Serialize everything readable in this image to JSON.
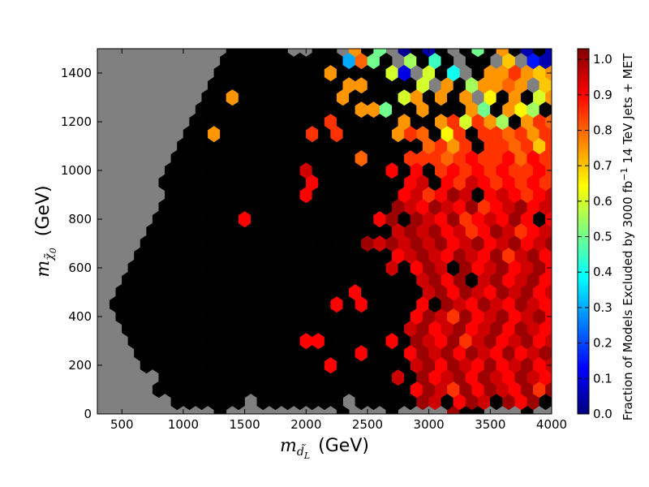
{
  "chart_data": {
    "type": "hexbin",
    "xlabel": {
      "symbol": "m",
      "sub": "d̃",
      "subsub": "L",
      "unit": "(GeV)"
    },
    "ylabel": {
      "symbol": "m",
      "sub": "χ̃",
      "subsub": "0",
      "unit": "(GeV)"
    },
    "colorbar_label": {
      "text": "Fraction of Models Excluded by 3000 fb",
      "superscript": "−1",
      "text_after": "14 TeV Jets + MET"
    },
    "colormap": "jet",
    "zero_color": "#000000",
    "empty_color": "#808080",
    "xlim": [
      300,
      4000
    ],
    "ylim": [
      0,
      1500
    ],
    "xticks": [
      500,
      1000,
      1500,
      2000,
      2500,
      3000,
      3500,
      4000
    ],
    "yticks": [
      0,
      200,
      400,
      600,
      800,
      1000,
      1200,
      1400
    ],
    "clim": [
      0,
      1.03
    ],
    "cticks": [
      {
        "value": 0,
        "label": "0.0"
      },
      0.1,
      0.2,
      0.3,
      0.4,
      0.5,
      0.6,
      0.7,
      0.8,
      0.9,
      {
        "value": 1,
        "label": "1.0"
      }
    ],
    "x": [
      300,
      400,
      500,
      600,
      700,
      800,
      900,
      1000,
      1100,
      1200,
      1300,
      1400,
      1500,
      1600,
      1700,
      1800,
      1900,
      2000,
      2100,
      2200,
      2300,
      2400,
      2500,
      2600,
      2700,
      2800,
      2900,
      3000,
      3100,
      3200,
      3300,
      3400,
      3500,
      3600,
      3700,
      3800,
      3900,
      4000
    ],
    "x_odd": [
      350,
      450,
      550,
      650,
      750,
      850,
      950,
      1050,
      1150,
      1250,
      1350,
      1450,
      1550,
      1650,
      1750,
      1850,
      1950,
      2050,
      2150,
      2250,
      2350,
      2450,
      2550,
      2650,
      2750,
      2850,
      2950,
      3050,
      3150,
      3250,
      3350,
      3450,
      3550,
      3650,
      3750,
      3850,
      3950
    ],
    "y": [
      0,
      50,
      100,
      150,
      200,
      250,
      300,
      350,
      400,
      450,
      500,
      550,
      600,
      650,
      700,
      750,
      800,
      850,
      900,
      950,
      1000,
      1050,
      1100,
      1150,
      1200,
      1250,
      1300,
      1350,
      1400,
      1450,
      1500
    ],
    "values": [
      [
        null,
        null,
        null,
        null,
        null,
        null,
        null,
        null,
        null,
        null,
        0,
        null,
        null,
        null,
        null,
        null,
        null,
        null,
        null,
        null,
        0,
        null,
        null,
        null,
        0,
        null,
        null,
        null,
        null,
        1,
        0,
        0,
        null,
        null,
        null,
        0,
        null,
        null
      ],
      [
        null,
        null,
        null,
        null,
        null,
        null,
        0,
        0,
        0,
        0,
        0,
        0,
        null,
        0,
        0,
        0,
        0,
        0,
        0,
        0,
        null,
        0,
        0,
        0,
        0,
        0,
        1,
        0.95,
        0,
        0.9,
        1,
        0.95,
        0,
        1,
        0.9,
        1,
        0
      ],
      [
        null,
        null,
        null,
        null,
        null,
        0,
        0,
        0,
        0,
        0,
        0,
        0,
        0,
        0,
        0,
        0,
        0,
        0,
        0,
        0,
        0,
        0,
        0,
        0,
        0,
        0,
        0.9,
        1,
        0.95,
        0.85,
        1,
        0.9,
        1,
        0.95,
        0.9,
        1,
        0.85,
        1
      ],
      [
        null,
        null,
        null,
        null,
        null,
        0,
        0,
        0,
        0,
        0,
        0,
        0,
        0,
        0,
        0,
        0,
        0,
        0,
        0,
        0,
        0,
        0,
        0,
        0,
        0.95,
        0,
        1,
        0.9,
        0.95,
        1,
        0.9,
        1,
        0.95,
        0.9,
        1,
        0.95,
        0.9
      ],
      [
        null,
        null,
        null,
        null,
        0,
        0,
        0,
        0,
        0,
        0,
        0,
        0,
        0,
        0,
        0,
        0,
        0,
        0,
        0,
        0.9,
        0,
        0,
        0,
        0,
        0,
        0,
        0.95,
        1,
        0.9,
        1,
        0.95,
        0.9,
        1,
        0.9,
        0.95,
        1,
        0.9,
        0.95
      ],
      [
        null,
        null,
        null,
        0,
        0,
        0,
        0,
        0,
        0,
        0,
        0,
        0,
        0,
        0,
        0,
        0,
        0,
        0,
        0,
        0,
        0,
        0.9,
        0,
        0,
        0,
        0.9,
        1,
        0.95,
        1,
        0.9,
        1,
        0.95,
        0.9,
        1,
        0.9,
        0.95,
        1
      ],
      [
        null,
        null,
        null,
        0,
        0,
        0,
        0,
        0,
        0,
        0,
        0,
        0,
        0,
        0,
        0,
        0,
        0,
        0.9,
        0.9,
        0,
        0,
        0,
        0,
        0,
        0.9,
        0,
        1,
        0.95,
        0.9,
        1,
        0.85,
        0.95,
        1,
        0.9,
        0.95,
        1,
        0.9,
        0.95
      ],
      [
        null,
        null,
        0,
        0,
        0,
        0,
        0,
        0,
        0,
        0,
        0,
        0,
        0,
        0,
        0,
        0,
        0,
        0,
        0,
        0,
        0,
        0,
        0,
        0,
        0,
        0.95,
        1,
        0.9,
        0.95,
        1,
        0.9,
        0.95,
        1,
        0.9,
        1,
        0.95,
        0.9
      ],
      [
        null,
        null,
        0,
        0,
        0,
        0,
        0,
        0,
        0,
        0,
        0,
        0,
        0,
        0,
        0,
        0,
        0,
        0,
        0,
        0,
        0,
        0,
        0,
        0,
        0,
        0,
        0.9,
        1,
        0.95,
        0.85,
        1,
        0.9,
        0.95,
        1,
        0.9,
        0.95,
        1,
        0.9
      ],
      [
        null,
        0,
        0,
        0,
        0,
        0,
        0,
        0,
        0,
        0,
        0,
        0,
        0,
        0,
        0,
        0,
        0,
        0,
        0,
        0.9,
        0,
        0.9,
        0,
        0,
        0,
        0,
        0.9,
        0,
        1,
        0.95,
        0.9,
        1,
        0.95,
        0.9,
        1,
        0.95,
        0.9
      ],
      [
        null,
        null,
        0,
        0,
        0,
        0,
        0,
        0,
        0,
        0,
        0,
        0,
        0,
        0,
        0,
        0,
        0,
        0,
        0,
        0,
        0,
        0.9,
        0,
        0,
        0,
        0,
        0,
        0.95,
        1,
        0.9,
        1,
        0.95,
        0.9,
        1,
        0.95,
        1,
        0.9,
        0.95
      ],
      [
        null,
        null,
        0,
        0,
        0,
        0,
        0,
        0,
        0,
        0,
        0,
        0,
        0,
        0,
        0,
        0,
        0,
        0,
        0,
        0,
        0,
        0,
        0,
        0,
        0,
        0,
        0.95,
        1,
        0.9,
        1,
        0,
        0.95,
        1,
        0.9,
        0.95,
        1,
        0.9
      ],
      [
        null,
        null,
        null,
        0,
        0,
        0,
        0,
        0,
        0,
        0,
        0,
        0,
        0,
        0,
        0,
        0,
        0,
        0,
        0,
        0,
        0,
        0,
        0,
        0,
        0.95,
        0,
        0.9,
        1,
        0.95,
        0,
        1,
        0.9,
        0.95,
        1,
        0.9,
        0.95,
        1,
        0.9
      ],
      [
        null,
        null,
        null,
        0,
        0,
        0,
        0,
        0,
        0,
        0,
        0,
        0,
        0,
        0,
        0,
        0,
        0,
        0,
        0,
        0,
        0,
        0,
        0,
        0,
        0.9,
        0.95,
        1,
        0.95,
        0.9,
        1,
        0.95,
        0.9,
        1,
        0.85,
        0.95,
        1,
        0.9
      ],
      [
        null,
        null,
        null,
        null,
        0,
        0,
        0,
        0,
        0,
        0,
        0,
        0,
        0,
        0,
        0,
        0,
        0,
        0,
        0,
        0,
        0,
        0,
        1,
        0.95,
        1,
        0.95,
        1,
        0.95,
        1,
        0.9,
        0.95,
        1,
        0.9,
        0.95,
        1,
        0.9,
        0.95,
        1
      ],
      [
        null,
        null,
        null,
        null,
        0,
        0,
        0,
        0,
        0,
        0,
        0,
        0,
        0,
        0,
        0,
        0,
        0,
        0,
        0,
        0,
        0,
        0,
        0,
        0,
        0.95,
        1,
        0.95,
        1,
        0.9,
        0.95,
        0.85,
        0.9,
        1,
        0.95,
        0.85,
        0.9,
        0.95
      ],
      [
        null,
        null,
        null,
        null,
        null,
        0,
        0,
        0,
        0,
        0,
        0,
        0,
        0.9,
        0,
        0,
        0,
        0,
        0,
        0,
        0,
        0,
        0,
        0,
        0.9,
        1,
        0,
        1,
        0.95,
        0.9,
        1,
        0.85,
        0.9,
        0.95,
        0.9,
        1,
        0.9,
        0,
        0.9
      ],
      [
        null,
        null,
        null,
        null,
        null,
        0,
        0,
        0,
        0,
        0,
        0,
        0,
        0,
        0,
        0,
        0,
        0,
        0,
        0,
        0,
        0,
        0,
        0,
        0,
        1,
        0.95,
        0.9,
        1,
        0.95,
        0.9,
        1,
        0.85,
        0.9,
        0.95,
        1,
        0.9,
        0.95
      ],
      [
        null,
        null,
        null,
        null,
        null,
        null,
        0,
        0,
        0,
        0,
        0,
        0,
        0,
        0,
        0,
        0,
        0,
        0.9,
        0,
        0,
        0,
        0,
        0,
        0,
        0,
        0.9,
        0.95,
        0.85,
        0.9,
        1,
        0.95,
        0,
        0.9,
        0.95,
        0.9,
        0.85,
        0.9,
        0.95
      ],
      [
        null,
        null,
        null,
        null,
        null,
        0,
        0,
        0,
        0,
        0,
        0,
        0,
        0,
        0,
        0,
        0,
        0,
        0.9,
        0,
        0,
        0,
        0,
        0,
        0,
        0,
        0.9,
        0.95,
        0,
        0.9,
        0.85,
        0.95,
        0.9,
        0.85,
        0.9,
        0.85,
        0.9,
        0.85
      ],
      [
        null,
        null,
        null,
        null,
        null,
        null,
        0,
        0,
        0,
        0,
        0,
        0,
        0,
        0,
        0,
        0,
        0,
        0.95,
        0,
        0,
        0,
        0,
        0,
        0,
        0.9,
        0,
        0.9,
        0,
        0.85,
        0.9,
        0.85,
        0.9,
        0.85,
        0.9,
        0.85,
        0.85,
        0.9,
        0.85
      ],
      [
        null,
        null,
        null,
        null,
        null,
        null,
        0,
        0,
        0,
        0,
        0,
        0,
        0,
        0,
        0,
        0,
        0,
        0,
        0,
        0,
        0,
        0.8,
        0,
        0,
        0,
        0.85,
        0.85,
        0.85,
        0.8,
        0.85,
        0.9,
        0.85,
        0.85,
        0.9,
        0.8,
        0.9,
        0.85
      ],
      [
        null,
        null,
        null,
        null,
        null,
        null,
        null,
        0,
        0,
        0,
        0,
        0,
        0,
        0,
        0,
        0,
        0,
        0,
        0,
        0,
        0,
        0,
        0,
        0,
        0,
        0,
        0,
        0.8,
        0.85,
        0.75,
        0.85,
        0,
        0.85,
        0.85,
        0.8,
        0.85,
        0.7,
        0.85
      ],
      [
        null,
        null,
        null,
        null,
        null,
        null,
        null,
        0,
        0,
        0.75,
        0,
        0,
        0,
        0,
        0,
        0,
        0,
        0.85,
        0,
        0.85,
        0,
        0,
        0,
        0,
        0.75,
        0.85,
        0.8,
        0,
        0.65,
        0.85,
        0,
        0.85,
        0.85,
        0.8,
        0.85,
        0.75,
        0.85
      ],
      [
        null,
        null,
        null,
        null,
        null,
        null,
        null,
        null,
        0,
        0,
        0,
        0,
        0,
        0,
        0,
        0,
        0,
        0,
        0,
        0.85,
        0,
        0,
        0,
        0,
        0,
        0.75,
        0,
        0,
        0.75,
        0.85,
        0.6,
        0.85,
        0.75,
        0.55,
        0,
        0.75,
        0.85,
        0.8
      ],
      [
        null,
        null,
        null,
        null,
        null,
        null,
        null,
        null,
        0,
        0,
        0,
        0,
        0,
        0,
        0,
        0,
        0,
        0,
        0,
        0,
        0,
        0.75,
        0.75,
        0.5,
        0,
        0,
        0.75,
        0,
        0,
        0,
        0.75,
        0.5,
        0,
        0.75,
        0.65,
        0.55,
        0
      ],
      [
        null,
        null,
        null,
        null,
        null,
        null,
        null,
        null,
        null,
        0,
        0,
        0.75,
        0,
        0,
        0,
        0,
        0,
        0,
        0,
        0,
        0.75,
        0,
        0,
        0,
        0,
        0.6,
        0.75,
        0,
        0.75,
        0,
        0.75,
        null,
        0.65,
        0,
        0.75,
        0,
        0.6,
        0.75
      ],
      [
        null,
        null,
        null,
        null,
        null,
        null,
        null,
        null,
        null,
        0,
        0,
        0,
        0,
        0,
        0,
        0,
        0,
        0,
        0,
        0,
        0.75,
        0.75,
        0,
        0,
        0,
        0,
        0.6,
        null,
        0.75,
        0,
        0.55,
        0.75,
        0.75,
        0.8,
        0.75,
        null,
        0.7
      ],
      [
        null,
        null,
        null,
        null,
        null,
        null,
        null,
        null,
        null,
        null,
        0,
        0,
        0,
        0,
        0,
        0,
        0,
        0,
        0,
        0.75,
        0,
        0,
        0,
        0,
        0.6,
        0.1,
        null,
        0.6,
        0,
        0.4,
        null,
        0,
        0.75,
        0.75,
        0.85,
        0.75,
        0.7,
        0.75
      ],
      [
        null,
        null,
        null,
        null,
        null,
        null,
        null,
        null,
        null,
        null,
        0,
        0,
        0,
        0,
        0,
        0,
        0,
        0,
        0,
        0,
        0.3,
        0.8,
        0.5,
        0,
        null,
        0.55,
        0,
        0.45,
        0,
        null,
        0,
        0,
        null,
        0.7,
        null,
        0.15,
        0.05
      ],
      [
        null,
        null,
        null,
        null,
        null,
        null,
        null,
        null,
        null,
        null,
        null,
        0,
        0,
        0,
        0,
        0,
        null,
        null,
        0,
        0,
        null,
        0.75,
        0,
        0.5,
        null,
        0.02,
        0,
        0.05,
        0,
        null,
        0,
        0.5,
        0,
        0.75,
        0,
        0.05,
        0,
        0.05
      ]
    ]
  }
}
